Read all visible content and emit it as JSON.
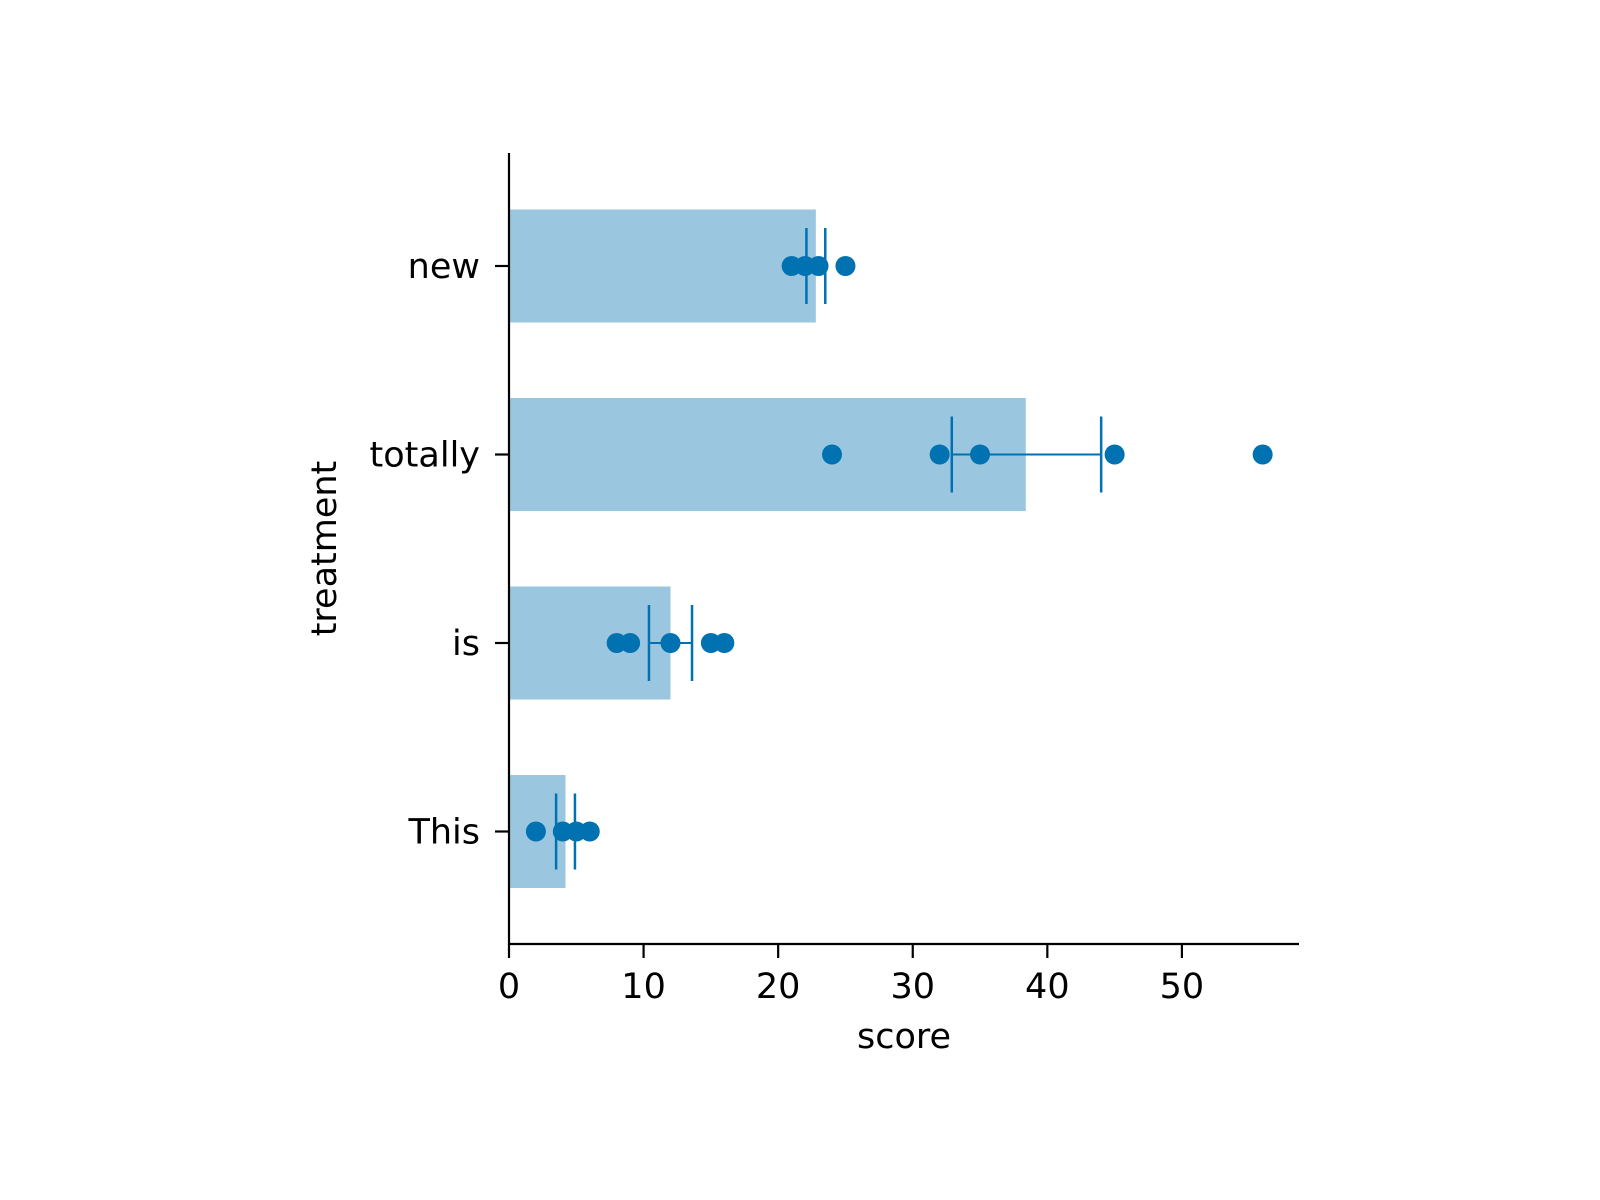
{
  "chart_data": {
    "type": "bar",
    "orientation": "horizontal",
    "xlabel": "score",
    "ylabel": "treatment",
    "categories": [
      "new",
      "totally",
      "is",
      "This"
    ],
    "bar_values": [
      22.8,
      38.4,
      12.0,
      4.2
    ],
    "error_bars": [
      {
        "low": 22.1,
        "high": 23.5
      },
      {
        "low": 32.9,
        "high": 44.0
      },
      {
        "low": 10.4,
        "high": 13.6
      },
      {
        "low": 3.5,
        "high": 4.9
      }
    ],
    "points": [
      [
        21,
        22,
        23,
        25
      ],
      [
        24,
        32,
        35,
        45,
        56
      ],
      [
        8,
        9,
        12,
        15,
        16
      ],
      [
        2,
        4,
        5,
        6
      ]
    ],
    "xlim": [
      0,
      58.7
    ],
    "xticks": [
      0,
      10,
      20,
      30,
      40,
      50
    ],
    "grid": false,
    "colors": {
      "bar": "#9ac7df",
      "point": "#0072b2",
      "errorbar": "#0072b2",
      "axis": "#000000"
    }
  }
}
